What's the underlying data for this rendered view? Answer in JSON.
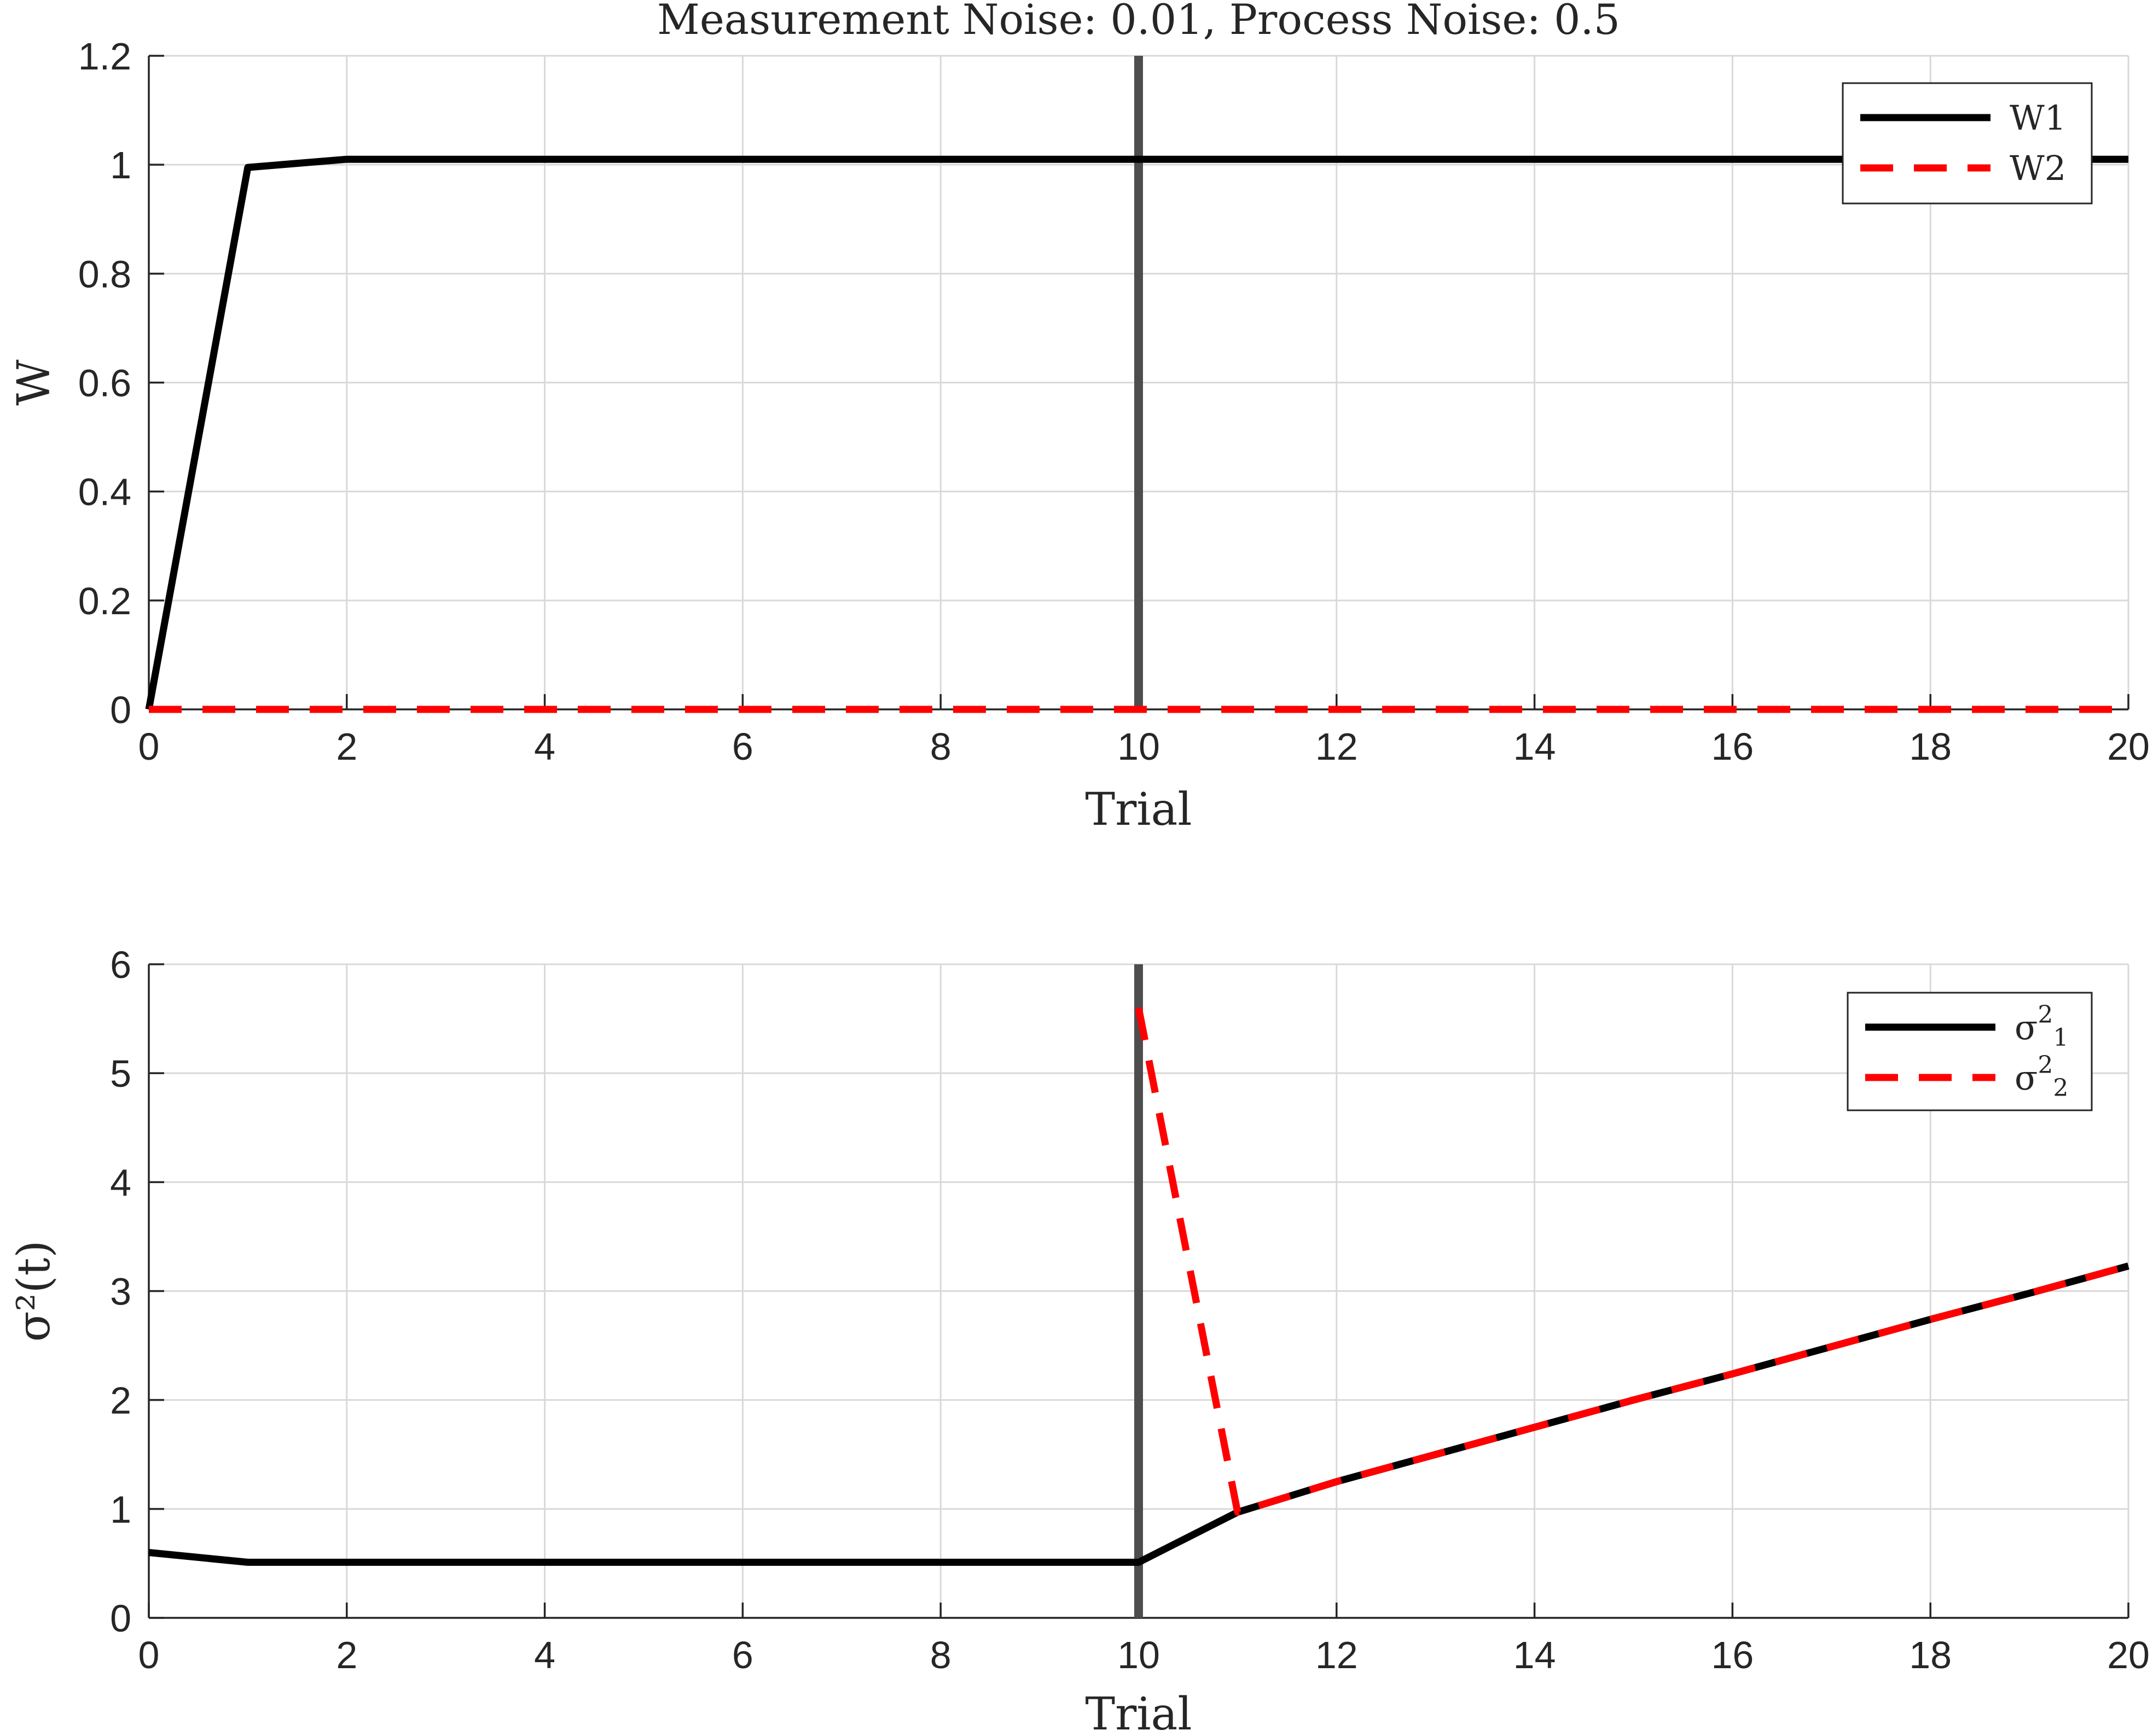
{
  "chart_data": [
    {
      "type": "line",
      "title": "Measurement Noise: 0.01, Process Noise: 0.5",
      "xlabel": "Trial",
      "ylabel": "W",
      "xlim": [
        0,
        20
      ],
      "ylim": [
        0,
        1.2
      ],
      "xticks": [
        "0",
        "2",
        "4",
        "6",
        "8",
        "10",
        "12",
        "14",
        "16",
        "18",
        "20"
      ],
      "yticks": [
        "0",
        "0.2",
        "0.4",
        "0.6",
        "0.8",
        "1",
        "1.2"
      ],
      "grid": true,
      "legend_position": "top-right",
      "vline_x": 10,
      "x": [
        0,
        1,
        2,
        3,
        4,
        5,
        6,
        7,
        8,
        9,
        10,
        11,
        12,
        13,
        14,
        15,
        16,
        17,
        18,
        19,
        20
      ],
      "series": [
        {
          "name": "W1",
          "color": "#000000",
          "style": "solid",
          "values": [
            0,
            0.995,
            1.01,
            1.01,
            1.01,
            1.01,
            1.01,
            1.01,
            1.01,
            1.01,
            1.01,
            1.01,
            1.01,
            1.01,
            1.01,
            1.01,
            1.01,
            1.01,
            1.01,
            1.01,
            1.01
          ]
        },
        {
          "name": "W2",
          "color": "#ff0000",
          "style": "dashed",
          "values": [
            0,
            0,
            0,
            0,
            0,
            0,
            0,
            0,
            0,
            0,
            0,
            0,
            0,
            0,
            0,
            0,
            0,
            0,
            0,
            0,
            0
          ]
        }
      ]
    },
    {
      "type": "line",
      "title": "",
      "xlabel": "Trial",
      "ylabel": "σ²(t)",
      "xlim": [
        0,
        20
      ],
      "ylim": [
        0,
        6
      ],
      "xticks": [
        "0",
        "2",
        "4",
        "6",
        "8",
        "10",
        "12",
        "14",
        "16",
        "18",
        "20"
      ],
      "yticks": [
        "0",
        "1",
        "2",
        "3",
        "4",
        "5",
        "6"
      ],
      "grid": true,
      "legend_position": "top-right",
      "vline_x": 10,
      "series": [
        {
          "name": "σ²₁",
          "label_base": "σ",
          "label_sup": "2",
          "label_sub": "1",
          "color": "#000000",
          "style": "solid",
          "x": [
            0,
            1,
            2,
            3,
            4,
            5,
            6,
            7,
            8,
            9,
            10,
            11,
            12,
            13,
            14,
            15,
            16,
            17,
            18,
            19,
            20
          ],
          "values": [
            0.6,
            0.51,
            0.51,
            0.51,
            0.51,
            0.51,
            0.51,
            0.51,
            0.51,
            0.51,
            0.51,
            0.97,
            1.25,
            1.5,
            1.75,
            2.0,
            2.24,
            2.49,
            2.74,
            2.98,
            3.23
          ]
        },
        {
          "name": "σ²₂",
          "label_base": "σ",
          "label_sup": "2",
          "label_sub": "2",
          "color": "#ff0000",
          "style": "dashed",
          "x": [
            10,
            11,
            12,
            13,
            14,
            15,
            16,
            17,
            18,
            19,
            20
          ],
          "values": [
            5.6,
            0.97,
            1.25,
            1.5,
            1.75,
            2.0,
            2.24,
            2.49,
            2.74,
            2.98,
            3.23
          ]
        }
      ]
    }
  ]
}
